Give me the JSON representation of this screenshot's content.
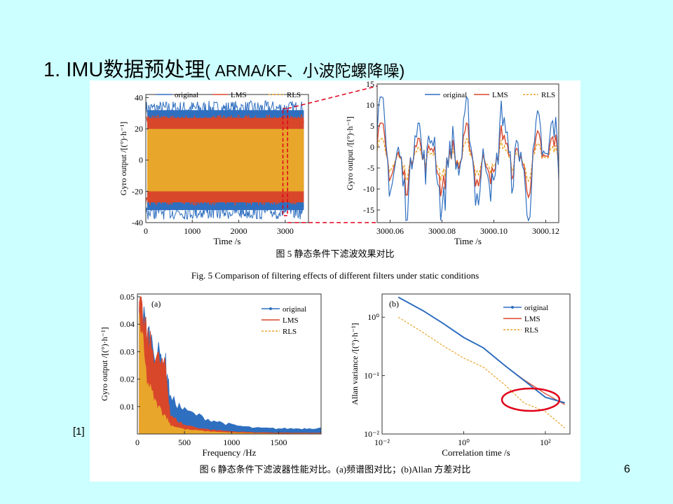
{
  "slide": {
    "title_main": "1. IMU数据预处理",
    "title_sub": "( ARMA/KF、小波陀螺降噪)",
    "reference_marker": "[1]",
    "page_number": "6"
  },
  "figure5": {
    "caption_cn": "图 5  静态条件下滤波效果对比",
    "caption_en": "Fig. 5  Comparison of filtering effects of different filters under static conditions"
  },
  "figure6": {
    "caption": "图 6  静态条件下滤波器性能对比。(a)频谱图对比；(b)Allan 方差对比"
  },
  "colors": {
    "original": "#2f6fc0",
    "LMS": "#d9472b",
    "RLS": "#e8a62a",
    "background": "#ccffff",
    "highlight_circle": "#e0001a"
  },
  "chart_data": [
    {
      "type": "line",
      "panel": "fig5-left",
      "xlabel": "Time /s",
      "ylabel": "Gyro output /[(°)·h⁻¹]",
      "xlim": [
        0,
        3500
      ],
      "ylim": [
        -40,
        42
      ],
      "xticks": [
        "0",
        "1000",
        "2000",
        "3000"
      ],
      "yticks": [
        "40",
        "20",
        "0",
        "-20",
        "-40"
      ],
      "legend": [
        "original",
        "LMS",
        "RLS"
      ],
      "legend_position": "top",
      "series": [
        {
          "name": "original",
          "band": [
            -32,
            32
          ]
        },
        {
          "name": "LMS",
          "band": [
            -27,
            27
          ]
        },
        {
          "name": "RLS",
          "band": [
            -20,
            20
          ]
        }
      ]
    },
    {
      "type": "line",
      "panel": "fig5-right",
      "xlabel": "Time /s",
      "ylabel": "Gyro output /[(°)·h⁻¹]",
      "xlim": [
        3000.055,
        3000.125
      ],
      "ylim": [
        -18,
        15
      ],
      "xticks": [
        "3000.06",
        "3000.08",
        "3000.10",
        "3000.12"
      ],
      "yticks": [
        "15",
        "10",
        "5",
        "0",
        "-5",
        "-10",
        "-15"
      ],
      "legend": [
        "original",
        "LMS",
        "RLS"
      ],
      "legend_position": "top-right",
      "series": [
        {
          "name": "original",
          "amplitude": 12
        },
        {
          "name": "LMS",
          "amplitude": 7
        },
        {
          "name": "RLS",
          "amplitude": 4
        }
      ]
    },
    {
      "type": "area",
      "panel": "fig6-a",
      "label": "(a)",
      "xlabel": "Frequency /Hz",
      "ylabel": "Gyro output /[(°)·h⁻¹]",
      "xlim": [
        0,
        1950
      ],
      "ylim": [
        0,
        0.05
      ],
      "xticks": [
        "0",
        "500",
        "1000",
        "1500"
      ],
      "yticks": [
        "0.05",
        "0.04",
        "0.03",
        "0.02",
        "0.01"
      ],
      "legend": [
        "original",
        "LMS",
        "RLS"
      ],
      "legend_position": "top-right",
      "x": [
        20,
        100,
        200,
        300,
        350,
        500,
        750,
        1000,
        1250,
        1500,
        1750,
        1950
      ],
      "series": [
        {
          "name": "original",
          "values": [
            0.045,
            0.035,
            0.028,
            0.024,
            0.012,
            0.008,
            0.005,
            0.003,
            0.002,
            0.0018,
            0.0018,
            0.002
          ]
        },
        {
          "name": "LMS",
          "values": [
            0.044,
            0.033,
            0.026,
            0.022,
            0.006,
            0.003,
            0.0015,
            0.0008,
            0.0005,
            0.0004,
            0.0003,
            0.0003
          ]
        },
        {
          "name": "RLS",
          "values": [
            0.04,
            0.018,
            0.01,
            0.006,
            0.003,
            0.0015,
            0.0008,
            0.0004,
            0.0002,
            0.0001,
            0.0001,
            0.0001
          ]
        }
      ]
    },
    {
      "type": "line",
      "panel": "fig6-b",
      "label": "(b)",
      "xlabel": "Correlation time /s",
      "ylabel": "Allan variance /[(°)·h⁻¹]",
      "xscale": "log",
      "yscale": "log",
      "xlim": [
        0.01,
        400
      ],
      "ylim": [
        0.01,
        2.5
      ],
      "xticks": [
        "10⁻²",
        "10⁰",
        "10²"
      ],
      "yticks": [
        "10⁰",
        "10⁻¹",
        "10⁻²"
      ],
      "legend": [
        "original",
        "LMS",
        "RLS"
      ],
      "legend_position": "top-right",
      "x": [
        0.025,
        0.1,
        0.3,
        1,
        3,
        10,
        30,
        100,
        300
      ],
      "series": [
        {
          "name": "original",
          "values": [
            2.2,
            1.3,
            0.8,
            0.45,
            0.3,
            0.15,
            0.09,
            0.05,
            0.03
          ]
        },
        {
          "name": "LMS",
          "values": [
            2.2,
            1.3,
            0.8,
            0.45,
            0.3,
            0.15,
            0.09,
            0.05,
            0.03
          ]
        },
        {
          "name": "RLS",
          "values": [
            1.0,
            0.55,
            0.33,
            0.2,
            0.14,
            0.07,
            0.04,
            0.025,
            0.013
          ]
        }
      ]
    }
  ]
}
